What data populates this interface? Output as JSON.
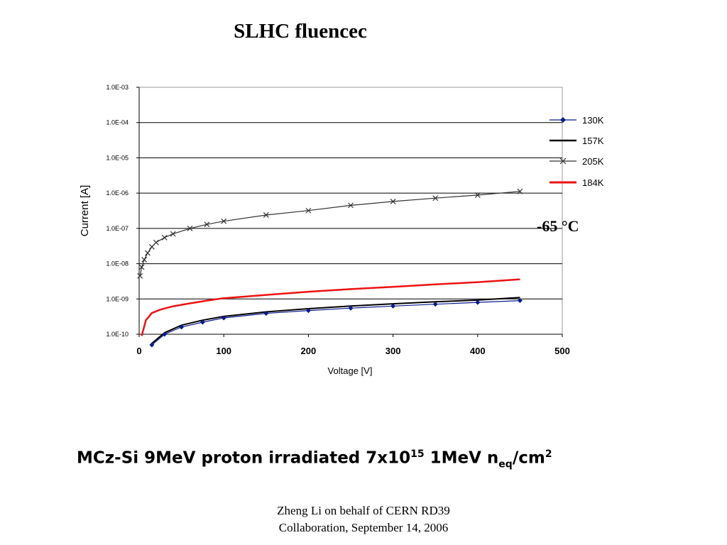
{
  "slide": {
    "title": "SLHC fluencec",
    "caption": {
      "prefix": "MCz-Si 9MeV proton irradiated 7x10",
      "exp": "15",
      "mid": " 1MeV n",
      "sub": "eq",
      "suffix": "/cm",
      "exp2": "2"
    },
    "footer_line1": "Zheng Li on behalf of CERN RD39",
    "footer_line2": "Collaboration, September 14, 2006"
  },
  "chart_data": {
    "type": "line",
    "xlabel": "Voltage [V]",
    "ylabel": "Current [A]",
    "xlim": [
      0,
      500
    ],
    "ylim": [
      1e-10,
      0.001
    ],
    "yscale": "log",
    "x_ticks": [
      "0",
      "100",
      "200",
      "300",
      "400",
      "500"
    ],
    "y_ticks": [
      "1.0E-03",
      "1.0E-04",
      "1.0E-05",
      "1.0E-06",
      "1.0E-07",
      "1.0E-08",
      "1.0E-09",
      "1.0E-10"
    ],
    "grid": "horizontal",
    "legend_position": "right",
    "annotation": "-65 °C",
    "series": [
      {
        "name": "130K",
        "color": "#0a1a8c",
        "marker": "diamond",
        "x": [
          15,
          30,
          50,
          75,
          100,
          150,
          200,
          250,
          300,
          350,
          400,
          450
        ],
        "y": [
          5e-11,
          1e-10,
          1.6e-10,
          2.2e-10,
          2.9e-10,
          3.9e-10,
          4.7e-10,
          5.5e-10,
          6.3e-10,
          7.1e-10,
          8e-10,
          9e-10
        ]
      },
      {
        "name": "157K",
        "color": "#000000",
        "marker": "none",
        "x": [
          15,
          30,
          50,
          75,
          100,
          150,
          200,
          250,
          300,
          350,
          400,
          450
        ],
        "y": [
          5.5e-11,
          1.1e-10,
          1.8e-10,
          2.5e-10,
          3.2e-10,
          4.3e-10,
          5.3e-10,
          6.3e-10,
          7.3e-10,
          8.3e-10,
          9.3e-10,
          1.1e-09
        ]
      },
      {
        "name": "205K",
        "color": "#333333",
        "marker": "x",
        "x": [
          1,
          3,
          6,
          10,
          15,
          20,
          30,
          40,
          60,
          80,
          100,
          150,
          200,
          250,
          300,
          350,
          400,
          450
        ],
        "y": [
          4.5e-09,
          8e-09,
          1.3e-08,
          2e-08,
          3e-08,
          4e-08,
          5.5e-08,
          7e-08,
          1e-07,
          1.3e-07,
          1.6e-07,
          2.4e-07,
          3.2e-07,
          4.5e-07,
          5.8e-07,
          7.2e-07,
          8.8e-07,
          1.12e-06
        ]
      },
      {
        "name": "184K",
        "color": "#ee1111",
        "marker": "none",
        "x": [
          3,
          8,
          15,
          25,
          40,
          60,
          80,
          100,
          150,
          200,
          250,
          300,
          350,
          400,
          450
        ],
        "y": [
          9e-11,
          2.5e-10,
          4e-10,
          5e-10,
          6.2e-10,
          7.5e-10,
          9e-10,
          1.05e-09,
          1.3e-09,
          1.6e-09,
          1.9e-09,
          2.2e-09,
          2.6e-09,
          3e-09,
          3.6e-09
        ]
      }
    ]
  }
}
